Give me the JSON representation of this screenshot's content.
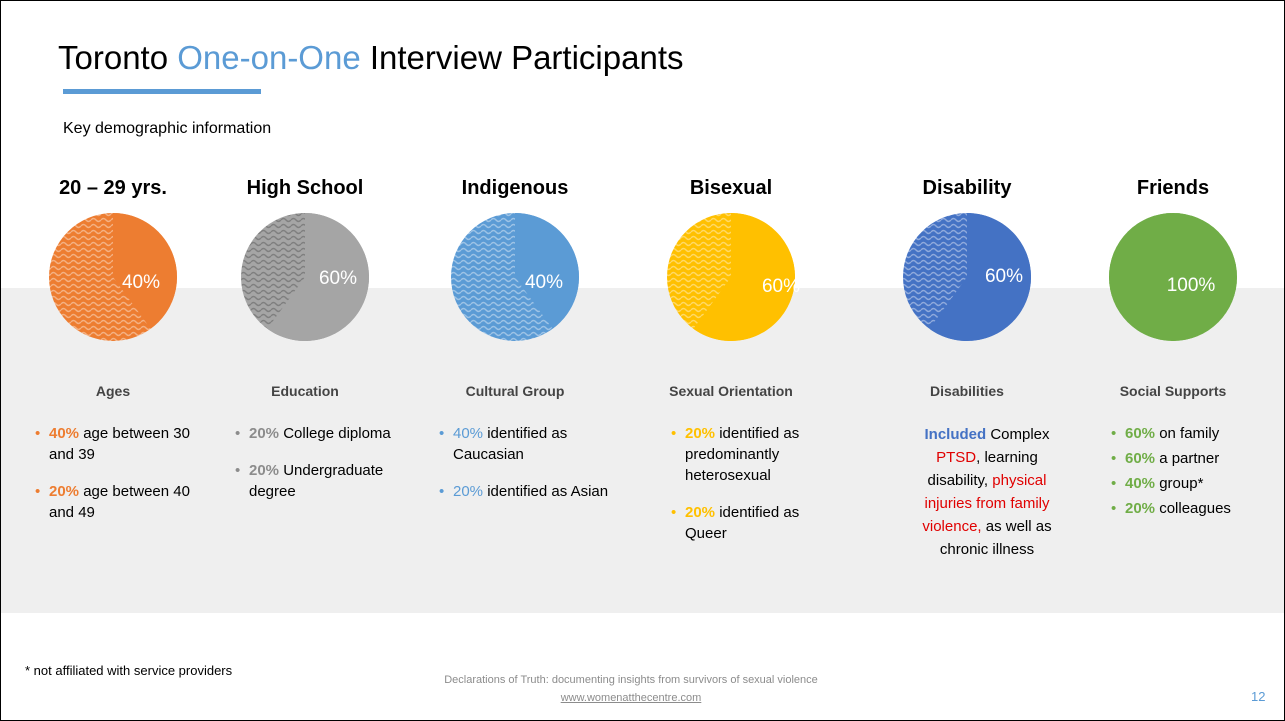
{
  "header": {
    "title_parts": [
      "Toronto ",
      "One-on-One",
      " Interview Participants"
    ],
    "subtitle": "Key demographic information"
  },
  "columns": [
    {
      "heading": "20 – 29 yrs.",
      "pie": {
        "value": 40,
        "value_label": "40%",
        "color": "#ed7d31",
        "rest_color": "#f4b183"
      },
      "subheading": "Ages",
      "accent": "#ed7d31",
      "pct_bold": true,
      "bullets": [
        {
          "pct": "40%",
          "text": " age between 30 and 39"
        },
        {
          "pct": "20%",
          "text": " age between 40 and 49"
        }
      ]
    },
    {
      "heading": "High School",
      "pie": {
        "value": 60,
        "value_label": "60%",
        "color": "#a5a5a5",
        "rest_color": "#7f7f7f"
      },
      "subheading": "Education",
      "accent": "#8c8c8c",
      "pct_bold": true,
      "bullets": [
        {
          "pct": "20%",
          "text": " College diploma"
        },
        {
          "pct": "20%",
          "text": " Undergraduate degree"
        }
      ]
    },
    {
      "heading": "Indigenous",
      "pie": {
        "value": 40,
        "value_label": "40%",
        "color": "#5b9bd5",
        "rest_color": "#9dc3e6"
      },
      "subheading": "Cultural Group",
      "accent": "#5b9bd5",
      "pct_bold": false,
      "bullets": [
        {
          "pct": "40%",
          "text": " identified as Caucasian"
        },
        {
          "pct": "20%",
          "text": " identified as Asian"
        }
      ]
    },
    {
      "heading": "Bisexual",
      "pie": {
        "value": 60,
        "value_label": "60%",
        "color": "#ffc000",
        "rest_color": "#ffd966"
      },
      "subheading": "Sexual Orientation",
      "accent": "#ffc000",
      "pct_bold": true,
      "bullets": [
        {
          "pct": "20%",
          "text": " identified as predominantly heterosexual"
        },
        {
          "pct": "20%",
          "text": " identified as Queer"
        }
      ]
    },
    {
      "heading": "Disability",
      "pie": {
        "value": 60,
        "value_label": "60%",
        "color": "#4472c4",
        "rest_color": "#8faadc"
      },
      "subheading": "Disabilities",
      "runs": [
        {
          "text": "Included",
          "style": "blue"
        },
        {
          "text": " Complex ",
          "style": "plain"
        },
        {
          "text": "PTSD",
          "style": "red"
        },
        {
          "text": ", learning disability, ",
          "style": "plain"
        },
        {
          "text": "physical injuries from family violence,",
          "style": "red"
        },
        {
          "text": " as well as chronic illness",
          "style": "plain"
        }
      ]
    },
    {
      "heading": "Friends",
      "pie": {
        "value": 100,
        "value_label": "100%",
        "color": "#70ad47",
        "rest_color": "#a9d18e"
      },
      "subheading": "Social Supports",
      "accent": "#70ad47",
      "pct_bold": true,
      "bullets": [
        {
          "pct": "60%",
          "text": " on family"
        },
        {
          "pct": "60%",
          "text": " a partner"
        },
        {
          "pct": "40%",
          "text": " group*"
        },
        {
          "pct": "20%",
          "text": " colleagues"
        }
      ]
    }
  ],
  "footer": {
    "note": "* not affiliated with service providers",
    "caption": "Declarations of Truth: documenting insights from survivors of sexual violence",
    "link": "www.womenatthecentre.com",
    "page": "12"
  }
}
